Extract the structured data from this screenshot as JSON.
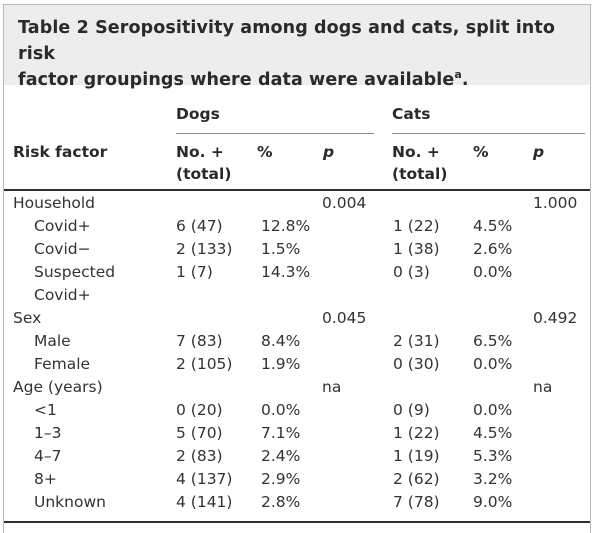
{
  "table": {
    "title_prefix": "Table 2",
    "title_line1": "Seropositivity among dogs and cats, split into risk",
    "title_line2": "factor groupings where data were available",
    "title_sup": "a",
    "title_end": ".",
    "header": {
      "dogs": "Dogs",
      "cats": "Cats",
      "risk_factor": "Risk factor",
      "no_total_1": "No. +",
      "no_total_2": "(total)",
      "pct": "%",
      "p": "p"
    },
    "rows": [
      {
        "label": "Household",
        "indent": false,
        "dogs_n": "",
        "dogs_pct": "",
        "dogs_p": "0.004",
        "cats_n": "",
        "cats_pct": "",
        "cats_p": "1.000"
      },
      {
        "label": "Covid+",
        "indent": true,
        "dogs_n": "6 (47)",
        "dogs_pct": "12.8%",
        "dogs_p": "",
        "cats_n": "1 (22)",
        "cats_pct": "4.5%",
        "cats_p": ""
      },
      {
        "label": "Covid−",
        "indent": true,
        "dogs_n": "2 (133)",
        "dogs_pct": "1.5%",
        "dogs_p": "",
        "cats_n": "1 (38)",
        "cats_pct": "2.6%",
        "cats_p": ""
      },
      {
        "label": "Suspected",
        "indent": true,
        "dogs_n": "1 (7)",
        "dogs_pct": "14.3%",
        "dogs_p": "",
        "cats_n": "0 (3)",
        "cats_pct": "0.0%",
        "cats_p": ""
      },
      {
        "label": "Covid+",
        "indent": true,
        "dogs_n": "",
        "dogs_pct": "",
        "dogs_p": "",
        "cats_n": "",
        "cats_pct": "",
        "cats_p": ""
      },
      {
        "label": "Sex",
        "indent": false,
        "dogs_n": "",
        "dogs_pct": "",
        "dogs_p": "0.045",
        "cats_n": "",
        "cats_pct": "",
        "cats_p": "0.492"
      },
      {
        "label": "Male",
        "indent": true,
        "dogs_n": "7 (83)",
        "dogs_pct": "8.4%",
        "dogs_p": "",
        "cats_n": "2 (31)",
        "cats_pct": "6.5%",
        "cats_p": ""
      },
      {
        "label": "Female",
        "indent": true,
        "dogs_n": "2 (105)",
        "dogs_pct": "1.9%",
        "dogs_p": "",
        "cats_n": "0 (30)",
        "cats_pct": "0.0%",
        "cats_p": ""
      },
      {
        "label": "Age (years)",
        "indent": false,
        "dogs_n": "",
        "dogs_pct": "",
        "dogs_p": "na",
        "cats_n": "",
        "cats_pct": "",
        "cats_p": "na"
      },
      {
        "label": "<1",
        "indent": true,
        "dogs_n": "0 (20)",
        "dogs_pct": "0.0%",
        "dogs_p": "",
        "cats_n": "0 (9)",
        "cats_pct": "0.0%",
        "cats_p": ""
      },
      {
        "label": "1–3",
        "indent": true,
        "dogs_n": "5 (70)",
        "dogs_pct": "7.1%",
        "dogs_p": "",
        "cats_n": "1 (22)",
        "cats_pct": "4.5%",
        "cats_p": ""
      },
      {
        "label": "4–7",
        "indent": true,
        "dogs_n": "2 (83)",
        "dogs_pct": "2.4%",
        "dogs_p": "",
        "cats_n": "1 (19)",
        "cats_pct": "5.3%",
        "cats_p": ""
      },
      {
        "label": "8+",
        "indent": true,
        "dogs_n": "4 (137)",
        "dogs_pct": "2.9%",
        "dogs_p": "",
        "cats_n": "2 (62)",
        "cats_pct": "3.2%",
        "cats_p": ""
      },
      {
        "label": "Unknown",
        "indent": true,
        "dogs_n": "4 (141)",
        "dogs_pct": "2.8%",
        "dogs_p": "",
        "cats_n": "7 (78)",
        "cats_pct": "9.0%",
        "cats_p": ""
      }
    ]
  }
}
